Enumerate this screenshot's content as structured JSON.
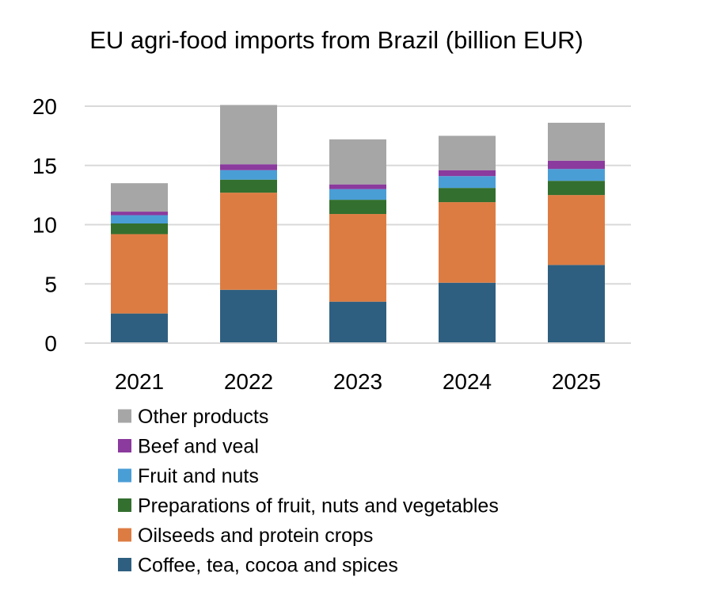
{
  "chart_data": {
    "type": "bar",
    "stacked": true,
    "title": "EU agri-food imports from Brazil (billion EUR)",
    "xlabel": "",
    "ylabel": "",
    "ylim": [
      0,
      20
    ],
    "yticks": [
      "0",
      "5",
      "10",
      "15",
      "20"
    ],
    "ytick_values": [
      0,
      5,
      10,
      15,
      20
    ],
    "grid": true,
    "legend_position": "bottom",
    "categories": [
      "2021",
      "2022",
      "2023",
      "2024",
      "2025"
    ],
    "series": [
      {
        "name": "Coffee, tea, cocoa and spices",
        "color": "#2e5f80",
        "values": [
          2.5,
          4.5,
          3.5,
          5.1,
          6.6
        ]
      },
      {
        "name": "Oilseeds and protein crops",
        "color": "#dd7c42",
        "values": [
          6.7,
          8.2,
          7.4,
          6.8,
          5.9
        ]
      },
      {
        "name": "Preparations of fruit, nuts and vegetables",
        "color": "#336f2e",
        "values": [
          0.9,
          1.1,
          1.2,
          1.2,
          1.2
        ]
      },
      {
        "name": "Fruit and nuts",
        "color": "#4a9ed6",
        "values": [
          0.7,
          0.8,
          0.9,
          1.0,
          1.0
        ]
      },
      {
        "name": "Beef and veal",
        "color": "#8b3a9d",
        "values": [
          0.3,
          0.5,
          0.4,
          0.5,
          0.7
        ]
      },
      {
        "name": "Other products",
        "color": "#a6a6a6",
        "values": [
          2.4,
          5.0,
          3.8,
          2.9,
          3.2
        ]
      }
    ]
  }
}
